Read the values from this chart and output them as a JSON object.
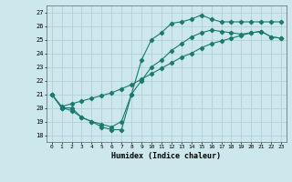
{
  "xlabel": "Humidex (Indice chaleur)",
  "xlim": [
    -0.5,
    23.5
  ],
  "ylim": [
    17.5,
    27.5
  ],
  "xticks": [
    0,
    1,
    2,
    3,
    4,
    5,
    6,
    7,
    8,
    9,
    10,
    11,
    12,
    13,
    14,
    15,
    16,
    17,
    18,
    19,
    20,
    21,
    22,
    23
  ],
  "yticks": [
    18,
    19,
    20,
    21,
    22,
    23,
    24,
    25,
    26,
    27
  ],
  "line_color": "#1a7a6e",
  "bg_color": "#cce8ec",
  "grid_color": "#b0d0d8",
  "line1_x": [
    0,
    1,
    2,
    3,
    4,
    5,
    6,
    7,
    8,
    9,
    10,
    11,
    12,
    13,
    14,
    15,
    16,
    17,
    18,
    19,
    20,
    21,
    22,
    23
  ],
  "line1_y": [
    21.0,
    20.0,
    20.0,
    19.3,
    19.0,
    18.6,
    18.4,
    18.4,
    21.0,
    23.5,
    25.0,
    25.5,
    26.2,
    26.3,
    26.5,
    26.8,
    26.5,
    26.3,
    26.3,
    26.3,
    26.3,
    26.3,
    26.3,
    26.3
  ],
  "line2_x": [
    0,
    1,
    2,
    3,
    4,
    5,
    6,
    7,
    8,
    9,
    10,
    11,
    12,
    13,
    14,
    15,
    16,
    17,
    18,
    19,
    20,
    21,
    22,
    23
  ],
  "line2_y": [
    21.0,
    20.1,
    20.3,
    20.5,
    20.7,
    20.9,
    21.1,
    21.4,
    21.7,
    22.1,
    22.5,
    22.9,
    23.3,
    23.7,
    24.0,
    24.4,
    24.7,
    24.9,
    25.1,
    25.3,
    25.5,
    25.6,
    25.2,
    25.1
  ],
  "line3_x": [
    0,
    1,
    2,
    3,
    4,
    5,
    6,
    7,
    8,
    9,
    10,
    11,
    12,
    13,
    14,
    15,
    16,
    17,
    18,
    19,
    20,
    21,
    22,
    23
  ],
  "line3_y": [
    21.0,
    20.0,
    19.8,
    19.3,
    19.0,
    18.8,
    18.6,
    19.0,
    21.0,
    22.0,
    23.0,
    23.5,
    24.2,
    24.7,
    25.2,
    25.5,
    25.7,
    25.6,
    25.5,
    25.4,
    25.5,
    25.6,
    25.2,
    25.1
  ]
}
